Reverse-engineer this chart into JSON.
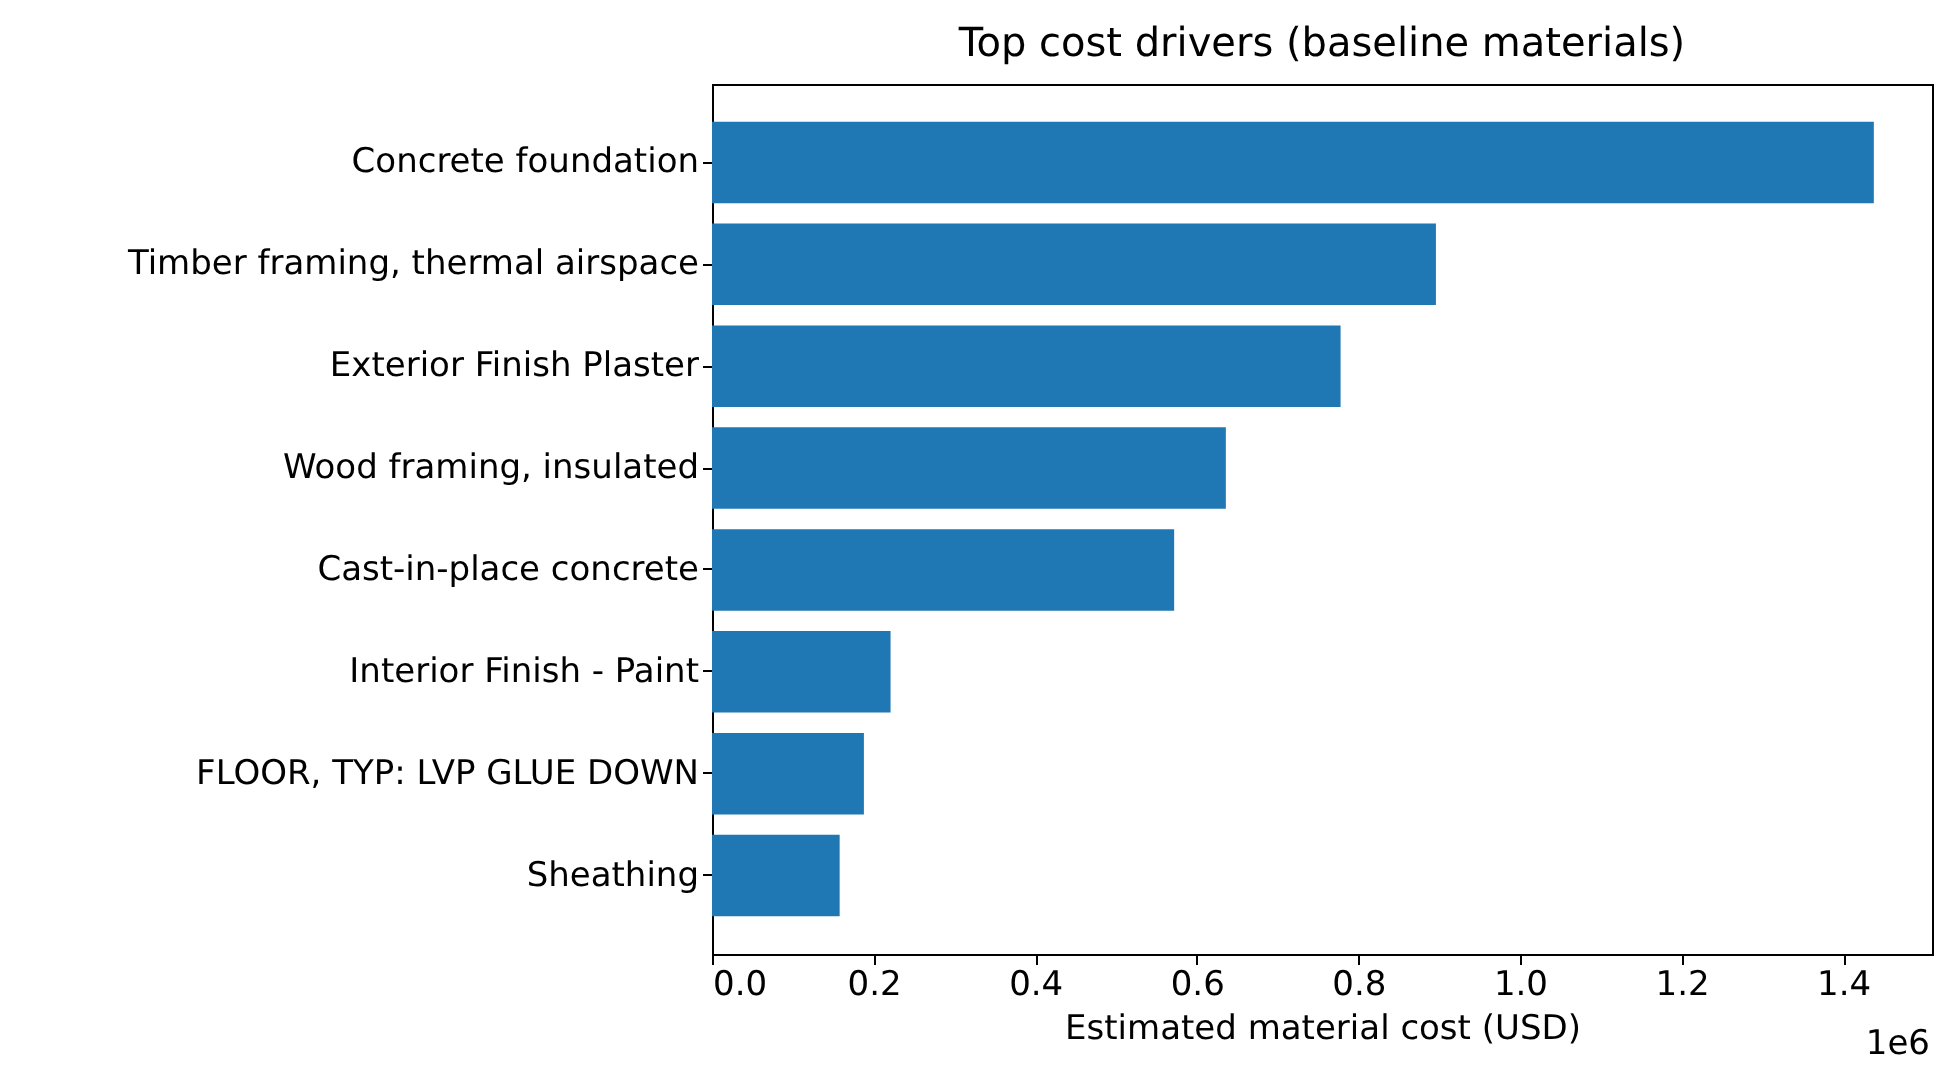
{
  "chart_data": {
    "type": "bar",
    "orientation": "horizontal",
    "title": "Top cost drivers (baseline materials)",
    "xlabel": "Estimated material cost (USD)",
    "categories": [
      "Concrete foundation",
      "Timber framing, thermal airspace",
      "Exterior Finish Plaster",
      "Wood framing, insulated",
      "Cast-in-place concrete",
      "Interior Finish - Paint",
      "FLOOR, TYP: LVP GLUE DOWN",
      "Sheathing"
    ],
    "values": [
      1.438,
      0.896,
      0.778,
      0.636,
      0.572,
      0.221,
      0.188,
      0.158
    ],
    "color": "#1f77b4",
    "xlim": [
      0,
      1.51
    ],
    "xticks": [
      {
        "value": 0,
        "label": "0.0"
      },
      0.2,
      0.4,
      0.6,
      0.8,
      {
        "value": 1,
        "label": "1.0"
      },
      1.2,
      1.4
    ],
    "annotations": [
      "1e6"
    ],
    "grid": false
  }
}
